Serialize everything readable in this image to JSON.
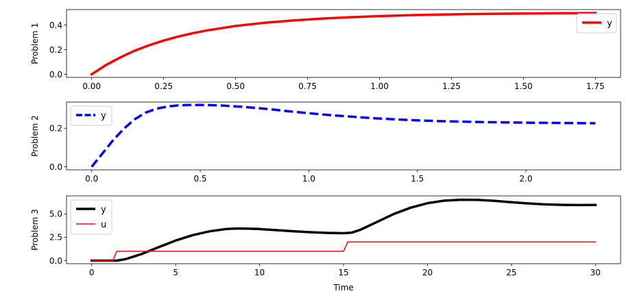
{
  "chart_data": [
    {
      "type": "line",
      "ylabel": "Problem 1",
      "xlim": [
        -0.0875,
        1.8375
      ],
      "ylim": [
        -0.025,
        0.525
      ],
      "xticks": [
        0.0,
        0.25,
        0.5,
        0.75,
        1.0,
        1.25,
        1.5,
        1.75
      ],
      "xtick_labels": [
        "0.00",
        "0.25",
        "0.50",
        "0.75",
        "1.00",
        "1.25",
        "1.50",
        "1.75"
      ],
      "yticks": [
        0.0,
        0.2,
        0.4
      ],
      "ytick_labels": [
        "0.0",
        "0.2",
        "0.4"
      ],
      "legend": "upper right",
      "series": [
        {
          "name": "y",
          "color": "#ff0000",
          "style": "solid",
          "width": 3.5,
          "x": [
            0.0,
            0.05,
            0.1,
            0.15,
            0.2,
            0.25,
            0.3,
            0.35,
            0.4,
            0.5,
            0.6,
            0.7,
            0.8,
            0.9,
            1.0,
            1.1,
            1.2,
            1.3,
            1.4,
            1.5,
            1.6,
            1.75
          ],
          "y": [
            0.0,
            0.076,
            0.138,
            0.192,
            0.236,
            0.274,
            0.306,
            0.333,
            0.356,
            0.392,
            0.418,
            0.437,
            0.452,
            0.463,
            0.472,
            0.479,
            0.484,
            0.488,
            0.491,
            0.493,
            0.495,
            0.497
          ]
        }
      ]
    },
    {
      "type": "line",
      "ylabel": "Problem 2",
      "xlim": [
        -0.116,
        2.436
      ],
      "ylim": [
        -0.016,
        0.336
      ],
      "xticks": [
        0.0,
        0.5,
        1.0,
        1.5,
        2.0
      ],
      "xtick_labels": [
        "0.0",
        "0.5",
        "1.0",
        "1.5",
        "2.0"
      ],
      "yticks": [
        0.0,
        0.2
      ],
      "ytick_labels": [
        "0.0",
        "0.2"
      ],
      "legend": "upper left",
      "series": [
        {
          "name": "y",
          "color": "#0000ff",
          "style": "dashed",
          "width": 3.5,
          "x": [
            0.0,
            0.05,
            0.1,
            0.15,
            0.2,
            0.25,
            0.3,
            0.35,
            0.4,
            0.45,
            0.5,
            0.55,
            0.6,
            0.7,
            0.8,
            0.9,
            1.0,
            1.1,
            1.2,
            1.3,
            1.4,
            1.5,
            1.6,
            1.8,
            2.0,
            2.2,
            2.32
          ],
          "y": [
            0.0,
            0.07,
            0.14,
            0.2,
            0.248,
            0.282,
            0.302,
            0.313,
            0.319,
            0.321,
            0.321,
            0.32,
            0.318,
            0.311,
            0.301,
            0.289,
            0.278,
            0.268,
            0.26,
            0.252,
            0.246,
            0.241,
            0.237,
            0.232,
            0.229,
            0.227,
            0.226
          ]
        }
      ]
    },
    {
      "type": "line",
      "ylabel": "Problem 3",
      "xlabel": "Time",
      "xlim": [
        -1.5,
        31.5
      ],
      "ylim": [
        -0.33,
        6.93
      ],
      "xticks": [
        0,
        5,
        10,
        15,
        20,
        25,
        30
      ],
      "xtick_labels": [
        "0",
        "5",
        "10",
        "15",
        "20",
        "25",
        "30"
      ],
      "yticks": [
        0.0,
        2.5,
        5.0
      ],
      "ytick_labels": [
        "0.0",
        "2.5",
        "5.0"
      ],
      "legend": "upper left",
      "series": [
        {
          "name": "y",
          "color": "#000000",
          "style": "solid",
          "width": 3.5,
          "x": [
            0,
            1.5,
            2,
            3,
            4,
            5,
            6,
            7,
            8,
            8.5,
            9,
            10,
            11,
            12,
            13,
            14,
            15,
            15.5,
            16,
            17,
            18,
            19,
            20,
            21,
            22,
            23,
            24,
            25,
            26,
            27,
            28,
            29,
            30
          ],
          "y": [
            0.0,
            0.0,
            0.15,
            0.72,
            1.45,
            2.15,
            2.72,
            3.13,
            3.38,
            3.43,
            3.44,
            3.38,
            3.26,
            3.14,
            3.04,
            2.97,
            2.93,
            3.0,
            3.3,
            4.15,
            5.0,
            5.67,
            6.15,
            6.42,
            6.52,
            6.5,
            6.4,
            6.25,
            6.12,
            6.02,
            5.97,
            5.95,
            5.96
          ]
        },
        {
          "name": "u",
          "color": "#ff0000",
          "style": "solid",
          "width": 1.5,
          "x": [
            0,
            1.25,
            1.5,
            15.0,
            15.25,
            30
          ],
          "y": [
            0,
            0,
            1,
            1,
            2,
            2
          ]
        }
      ]
    }
  ]
}
